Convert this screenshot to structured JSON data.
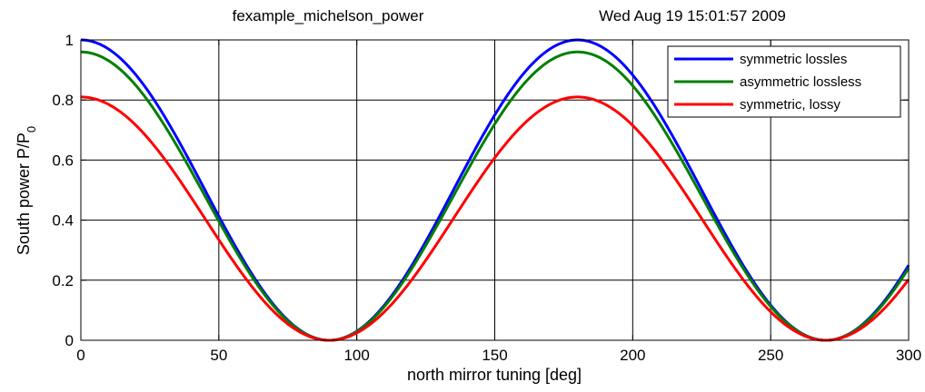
{
  "chart_data": {
    "type": "line",
    "title_left": "fexample_michelson_power",
    "title_right": "Wed Aug 19 15:01:57 2009",
    "xlabel": "north mirror tuning [deg]",
    "ylabel_main": "South power P/P",
    "ylabel_sub": "0",
    "xlim": [
      0,
      300
    ],
    "ylim": [
      0,
      1
    ],
    "x_ticks": [
      "0",
      "50",
      "100",
      "150",
      "200",
      "250",
      "300"
    ],
    "y_ticks": [
      "0",
      "0.2",
      "0.4",
      "0.6",
      "0.8",
      "1"
    ],
    "grid": true,
    "legend_position": "top-right",
    "series": [
      {
        "name": " symmetric lossles",
        "color": "#0000ff",
        "amplitude": 1.0,
        "function": "A*cos^2(x deg)"
      },
      {
        "name": "asymmetric lossless",
        "color": "#007f00",
        "amplitude": 0.96,
        "function": "A*cos^2(x deg)"
      },
      {
        "name": "symmetric, lossy",
        "color": "#ff0000",
        "amplitude": 0.81,
        "function": "A*cos^2(x deg)"
      }
    ]
  }
}
